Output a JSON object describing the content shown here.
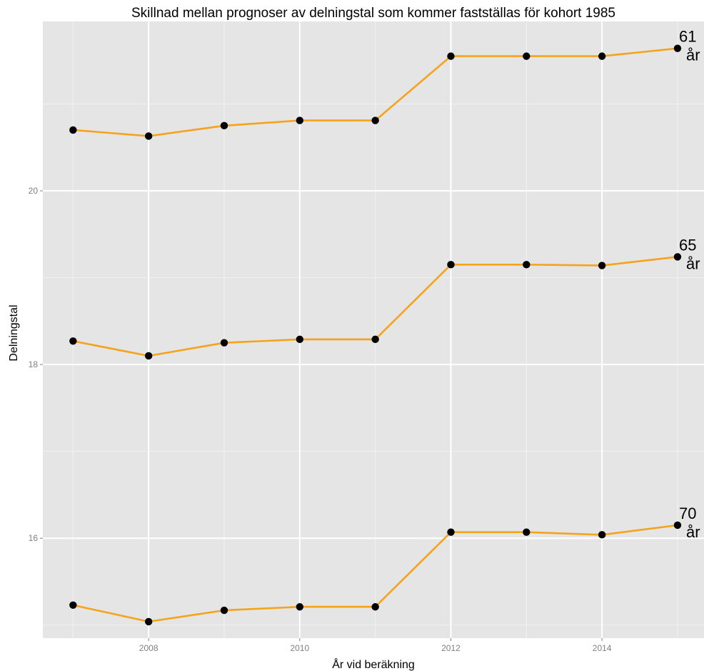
{
  "chart_data": {
    "type": "line",
    "title": "Skillnad mellan prognoser av delningstal som kommer fastställas för kohort 1985",
    "xlabel": "År vid beräkning",
    "ylabel": "Delningstal",
    "x": [
      2007,
      2008,
      2009,
      2010,
      2011,
      2012,
      2013,
      2014,
      2015
    ],
    "xlim": [
      2006.6,
      2015.35
    ],
    "ylim": [
      14.85,
      21.95
    ],
    "x_ticks": [
      2008,
      2010,
      2012,
      2014
    ],
    "y_ticks": [
      16,
      18,
      20
    ],
    "grid": true,
    "legend": "none",
    "series": [
      {
        "label_top": "61",
        "label_bottom": "år",
        "values": [
          20.7,
          20.63,
          20.75,
          20.81,
          20.81,
          21.55,
          21.55,
          21.55,
          21.64
        ]
      },
      {
        "label_top": "65",
        "label_bottom": "år",
        "values": [
          18.27,
          18.1,
          18.25,
          18.29,
          18.29,
          19.15,
          19.15,
          19.14,
          19.24
        ]
      },
      {
        "label_top": "70",
        "label_bottom": "år",
        "values": [
          15.23,
          15.04,
          15.17,
          15.21,
          15.21,
          16.07,
          16.07,
          16.04,
          16.15
        ]
      }
    ],
    "colors": {
      "line": "#f5a31a",
      "point": "#000000",
      "panel": "#e5e5e5",
      "grid_major": "#ffffff",
      "grid_minor": "#f2f2f2"
    }
  }
}
